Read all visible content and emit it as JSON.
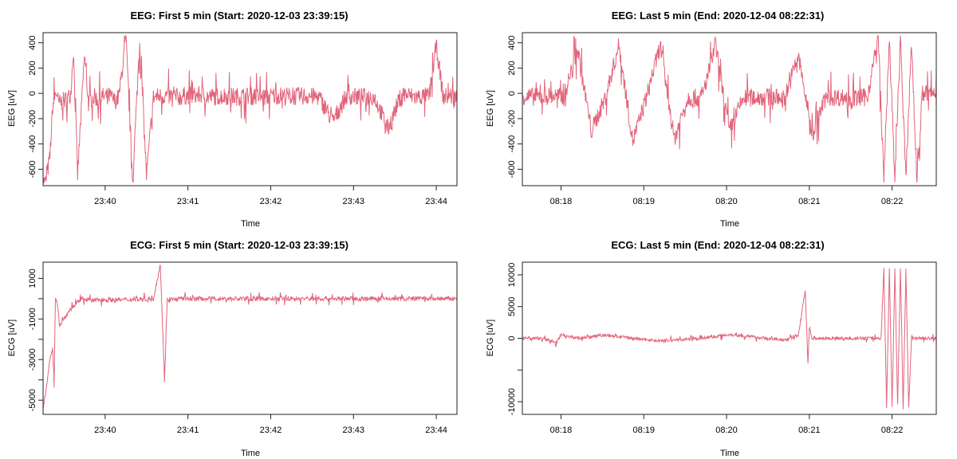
{
  "colors": {
    "signal": "#DF536B",
    "axis": "#222222"
  },
  "chart_data": [
    {
      "type": "line",
      "title": "EEG: First 5 min (Start: 2020-12-03 23:39:15)",
      "xlabel": "Time",
      "ylabel": "EEG [uV]",
      "ylim": [
        -730,
        480
      ],
      "yticks": [
        400,
        200,
        0,
        -200,
        -400,
        -600
      ],
      "xticks": [
        "23:40",
        "23:41",
        "23:42",
        "23:43",
        "23:44"
      ],
      "xrange_sec": [
        0,
        300
      ],
      "xtick_sec": [
        45,
        105,
        165,
        225,
        285
      ],
      "series": [
        {
          "name": "EEG",
          "x": [
            0,
            2,
            5,
            7,
            9,
            10,
            11,
            15,
            18,
            20,
            22,
            25,
            30,
            33,
            35,
            38,
            40,
            42,
            45,
            48,
            50,
            52,
            55,
            60,
            65,
            70,
            75,
            80,
            85,
            90,
            95,
            100,
            102,
            105,
            110,
            115,
            120,
            130,
            140,
            150,
            160,
            170,
            180,
            190,
            200,
            210,
            220,
            230,
            240,
            250,
            260,
            270,
            280,
            285,
            290,
            295,
            300
          ],
          "values": [
            -700,
            -700,
            -500,
            -100,
            0,
            0,
            -80,
            -60,
            -40,
            0,
            350,
            -650,
            300,
            -80,
            -40,
            -30,
            -60,
            -20,
            -30,
            -20,
            -40,
            -60,
            -30,
            440,
            -690,
            420,
            -650,
            -30,
            -20,
            -20,
            -25,
            -30,
            -20,
            -15,
            -20,
            -10,
            -30,
            -20,
            -25,
            -20,
            -30,
            -15,
            -25,
            -20,
            -30,
            -220,
            -20,
            -30,
            -25,
            -280,
            0,
            -30,
            -20,
            380,
            -30,
            -20,
            -30
          ]
        }
      ]
    },
    {
      "type": "line",
      "title": "EEG: Last 5 min (End: 2020-12-04 08:22:31)",
      "xlabel": "Time",
      "ylabel": "EEG [uV]",
      "ylim": [
        -730,
        480
      ],
      "yticks": [
        400,
        200,
        0,
        -200,
        -400,
        -600
      ],
      "xticks": [
        "08:18",
        "08:19",
        "08:20",
        "08:21",
        "08:22"
      ],
      "xrange_sec": [
        0,
        300
      ],
      "xtick_sec": [
        28,
        88,
        148,
        208,
        268
      ],
      "series": [
        {
          "name": "EEG",
          "x": [
            0,
            10,
            20,
            30,
            40,
            50,
            60,
            70,
            80,
            90,
            100,
            110,
            120,
            130,
            140,
            150,
            160,
            170,
            180,
            190,
            200,
            210,
            220,
            230,
            240,
            250,
            258,
            262,
            266,
            270,
            274,
            278,
            282,
            286,
            290,
            300
          ],
          "values": [
            -20,
            -30,
            -20,
            -30,
            350,
            -300,
            -40,
            380,
            -380,
            -30,
            380,
            -360,
            -30,
            -40,
            380,
            -300,
            -40,
            -30,
            -30,
            -40,
            300,
            -320,
            -30,
            -30,
            -40,
            -30,
            440,
            -690,
            440,
            -690,
            440,
            -690,
            420,
            -690,
            0,
            0
          ]
        }
      ]
    },
    {
      "type": "line",
      "title": "ECG: First 5 min (Start: 2020-12-03 23:39:15)",
      "xlabel": "Time",
      "ylabel": "ECG [uV]",
      "ylim": [
        -5700,
        1800
      ],
      "yticks": [
        1000,
        -1000,
        -3000,
        -5000
      ],
      "yminor_ticks": [
        0,
        -2000,
        -4000
      ],
      "xticks": [
        "23:40",
        "23:41",
        "23:42",
        "23:43",
        "23:44"
      ],
      "xrange_sec": [
        0,
        300
      ],
      "xtick_sec": [
        45,
        105,
        165,
        225,
        285
      ],
      "series": [
        {
          "name": "ECG",
          "x": [
            0,
            2,
            5,
            7,
            8,
            9,
            10,
            12,
            13,
            14,
            17,
            20,
            25,
            28,
            30,
            35,
            40,
            60,
            80,
            85,
            88,
            90,
            95,
            100,
            120,
            150,
            180,
            200,
            220,
            240,
            260,
            280,
            300
          ],
          "values": [
            -5400,
            -4500,
            -3000,
            -2500,
            -4400,
            0,
            0,
            -1300,
            -1200,
            -1100,
            -800,
            -500,
            -200,
            0,
            0,
            -100,
            -50,
            -50,
            0,
            1700,
            -4000,
            0,
            -50,
            0,
            0,
            0,
            0,
            0,
            0,
            0,
            0,
            0,
            0
          ]
        }
      ]
    },
    {
      "type": "line",
      "title": "ECG: Last 5 min (End: 2020-12-04 08:22:31)",
      "xlabel": "Time",
      "ylabel": "ECG [uV]",
      "ylim": [
        -12000,
        12000
      ],
      "yticks": [
        10000,
        5000,
        0,
        -10000
      ],
      "yminor_ticks": [
        -5000
      ],
      "xticks": [
        "08:18",
        "08:19",
        "08:20",
        "08:21",
        "08:22"
      ],
      "xrange_sec": [
        0,
        300
      ],
      "xtick_sec": [
        28,
        88,
        148,
        208,
        268
      ],
      "series": [
        {
          "name": "ECG",
          "x": [
            0,
            14,
            25,
            28,
            40,
            60,
            80,
            100,
            130,
            150,
            190,
            200,
            205,
            207,
            208,
            210,
            230,
            260,
            262,
            264,
            266,
            268,
            270,
            272,
            274,
            276,
            278,
            280,
            282,
            290,
            300
          ],
          "values": [
            0,
            0,
            -700,
            600,
            0,
            500,
            0,
            -400,
            0,
            600,
            -300,
            500,
            7500,
            -3800,
            1500,
            0,
            0,
            0,
            11000,
            -11000,
            11000,
            -11000,
            11000,
            -11000,
            11000,
            -11000,
            11000,
            -11000,
            0,
            0,
            0
          ]
        }
      ]
    }
  ],
  "panels": [
    {
      "title": "EEG: First 5 min (Start: 2020-12-03 23:39:15)",
      "xlabel": "Time",
      "ylabel": "EEG [uV]"
    },
    {
      "title": "EEG: Last 5 min (End: 2020-12-04 08:22:31)",
      "xlabel": "Time",
      "ylabel": "EEG [uV]"
    },
    {
      "title": "ECG: First 5 min (Start: 2020-12-03 23:39:15)",
      "xlabel": "Time",
      "ylabel": "ECG [uV]"
    },
    {
      "title": "ECG: Last 5 min (End: 2020-12-04 08:22:31)",
      "xlabel": "Time",
      "ylabel": "ECG [uV]"
    }
  ]
}
